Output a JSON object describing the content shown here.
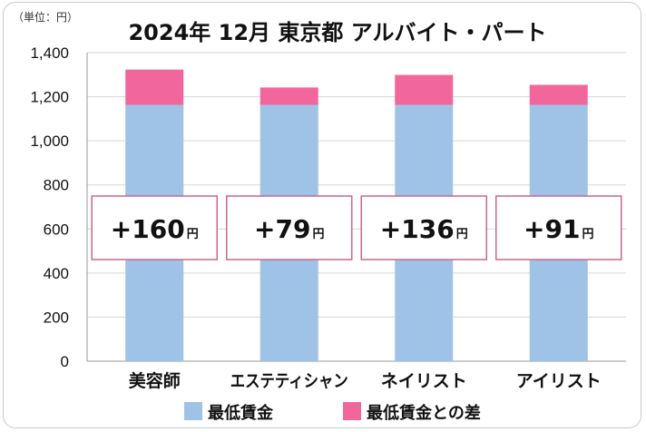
{
  "chart_data": {
    "type": "bar",
    "stacked": true,
    "title": "2024年 12月  東京都  アルバイト・パート",
    "unit_label": "（単位：円）",
    "categories": [
      "美容師",
      "エステティシャン",
      "ネイリスト",
      "アイリスト"
    ],
    "series": [
      {
        "name": "最低賃金",
        "values": [
          1163,
          1163,
          1163,
          1163
        ],
        "color": "#9ec3e6"
      },
      {
        "name": "最低賃金との差",
        "values": [
          160,
          79,
          136,
          91
        ],
        "color": "#f2679b"
      }
    ],
    "annotations": [
      {
        "category": "美容師",
        "prefix": "+",
        "number": "160",
        "suffix": "円"
      },
      {
        "category": "エステティシャン",
        "prefix": "+",
        "number": "79",
        "suffix": "円"
      },
      {
        "category": "ネイリスト",
        "prefix": "+",
        "number": "136",
        "suffix": "円"
      },
      {
        "category": "アイリスト",
        "prefix": "+",
        "number": "91",
        "suffix": "円"
      }
    ],
    "ylim": [
      0,
      1400
    ],
    "yticks": [
      0,
      200,
      400,
      600,
      800,
      1000,
      1200,
      1400
    ],
    "ytick_labels": [
      "0",
      "200",
      "400",
      "600",
      "800",
      "1,000",
      "1,200",
      "1,400"
    ],
    "grid": true,
    "legend_position": "bottom",
    "annotation_box_border": "#c9678f"
  }
}
